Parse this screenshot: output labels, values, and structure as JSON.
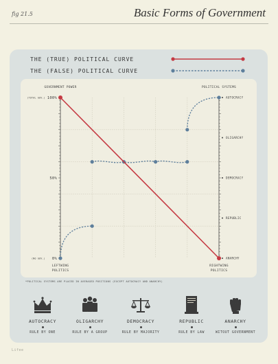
{
  "header": {
    "fig_label": "fig 21.5",
    "title": "Basic Forms of Government"
  },
  "legend": {
    "true_curve": "THE (TRUE) POLITICAL CURVE",
    "false_curve": "THE (FALSE) POLITICAL CURVE"
  },
  "colors": {
    "true_curve": "#c53a43",
    "false_curve": "#5e7f9c",
    "panel": "#dbe1e0",
    "chart_bg": "#f0eee1",
    "page_bg": "#f3f1e2"
  },
  "chart_data": {
    "type": "line",
    "left_axis_title": "GOVERNMENT POWER",
    "right_axis_title": "POLITICAL SYSTEMS",
    "left_ticks": [
      {
        "value": 100,
        "label": "100%",
        "note": "(TOTAL GOV.)"
      },
      {
        "value": 50,
        "label": "50%",
        "note": ""
      },
      {
        "value": 0,
        "label": "0%",
        "note": "(NO GOV.)"
      }
    ],
    "right_categories": [
      "AUTOCRACY",
      "OLIGARCHY",
      "DEMOCRACY",
      "REPUBLIC",
      "ANARCHY"
    ],
    "x_left_label": [
      "LEFTWING",
      "POLITICS"
    ],
    "x_right_label": [
      "RIGHTWING",
      "POLITICS"
    ],
    "xlim": [
      0,
      100
    ],
    "ylim": [
      0,
      100
    ],
    "series": [
      {
        "name": "THE (TRUE) POLITICAL CURVE",
        "style": "solid",
        "points": [
          [
            0,
            100
          ],
          [
            100,
            0
          ]
        ]
      },
      {
        "name": "THE (FALSE) POLITICAL CURVE",
        "style": "dashed",
        "segments": [
          [
            [
              0,
              0
            ],
            [
              20,
              20
            ]
          ],
          [
            [
              20,
              60
            ],
            [
              40,
              60
            ],
            [
              60,
              60
            ],
            [
              80,
              60
            ]
          ],
          [
            [
              80,
              80
            ],
            [
              100,
              100
            ]
          ]
        ]
      }
    ],
    "footnote": "*POLITICAL SYSTEMS ARE PLACED IN AVERAGED POSITIONS (EXCEPT AUTOCRACY AND ANARCHY)"
  },
  "forms": [
    {
      "name": "AUTOCRACY",
      "desc": "RULE BY ONE",
      "icon": "crown-icon"
    },
    {
      "name": "OLIGARCHY",
      "desc": "RULE BY A GROUP",
      "icon": "group-icon"
    },
    {
      "name": "DEMOCRACY",
      "desc": "RULE BY MAJORITY",
      "icon": "scales-icon"
    },
    {
      "name": "REPUBLIC",
      "desc": "RULE BY LAW",
      "icon": "document-icon"
    },
    {
      "name": "ANARCHY",
      "desc": "WITOUT GOVERNMENT",
      "icon": "fist-icon"
    }
  ],
  "credit": "Lifee"
}
